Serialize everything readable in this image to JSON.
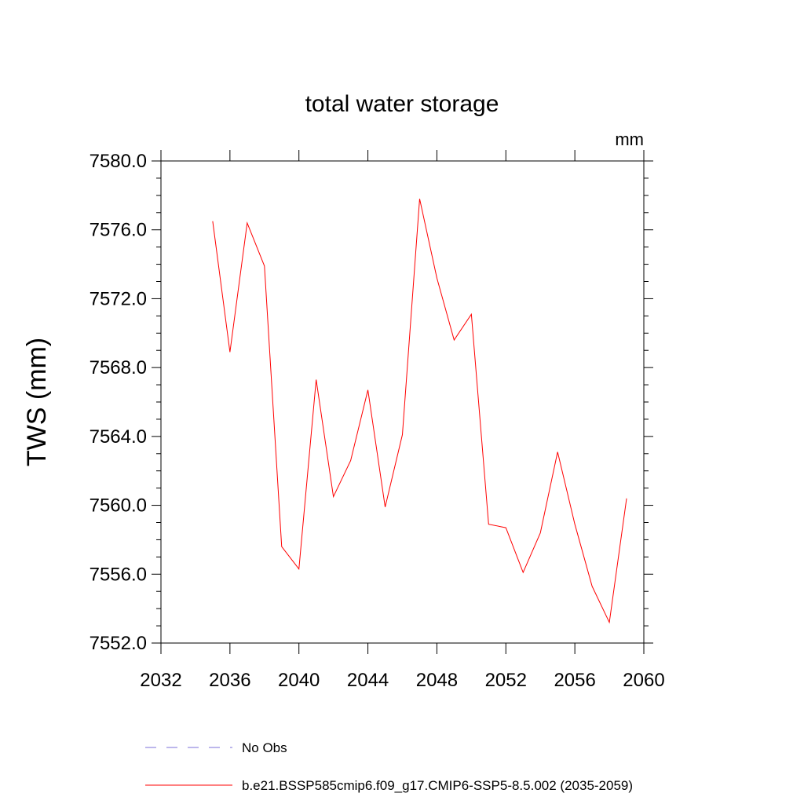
{
  "chart_data": {
    "type": "line",
    "title": "total water storage",
    "units": "mm",
    "xlabel": "",
    "ylabel": "TWS  (mm)",
    "xlim": [
      2032,
      2060
    ],
    "ylim": [
      7552,
      7580
    ],
    "xticks": [
      2032,
      2036,
      2040,
      2044,
      2048,
      2052,
      2056,
      2060
    ],
    "xtick_labels": [
      "2032",
      "2036",
      "2040",
      "2044",
      "2048",
      "2052",
      "2056",
      "2060"
    ],
    "yticks": [
      7552,
      7556,
      7560,
      7564,
      7568,
      7572,
      7576,
      7580
    ],
    "ytick_labels": [
      "7552.0",
      "7556.0",
      "7560.0",
      "7564.0",
      "7568.0",
      "7572.0",
      "7576.0",
      "7580.0"
    ],
    "grid": false,
    "legend_position": "bottom",
    "series": [
      {
        "name": "No Obs",
        "color": "#7b6fd8",
        "dash": "dashed",
        "x": [],
        "y": []
      },
      {
        "name": "b.e21.BSSP585cmip6.f09_g17.CMIP6-SSP5-8.5.002 (2035-2059)",
        "color": "#ff0000",
        "dash": "solid",
        "x": [
          2035,
          2036,
          2037,
          2038,
          2039,
          2040,
          2041,
          2042,
          2043,
          2044,
          2045,
          2046,
          2047,
          2048,
          2049,
          2050,
          2051,
          2052,
          2053,
          2054,
          2055,
          2056,
          2057,
          2058,
          2059
        ],
        "y": [
          7576.5,
          7568.9,
          7576.4,
          7573.9,
          7557.6,
          7556.3,
          7567.3,
          7560.5,
          7562.6,
          7566.7,
          7559.9,
          7564.1,
          7577.8,
          7573.2,
          7569.6,
          7571.1,
          7558.9,
          7558.7,
          7556.1,
          7558.4,
          7563.1,
          7558.9,
          7555.3,
          7553.2,
          7560.4
        ]
      }
    ]
  }
}
